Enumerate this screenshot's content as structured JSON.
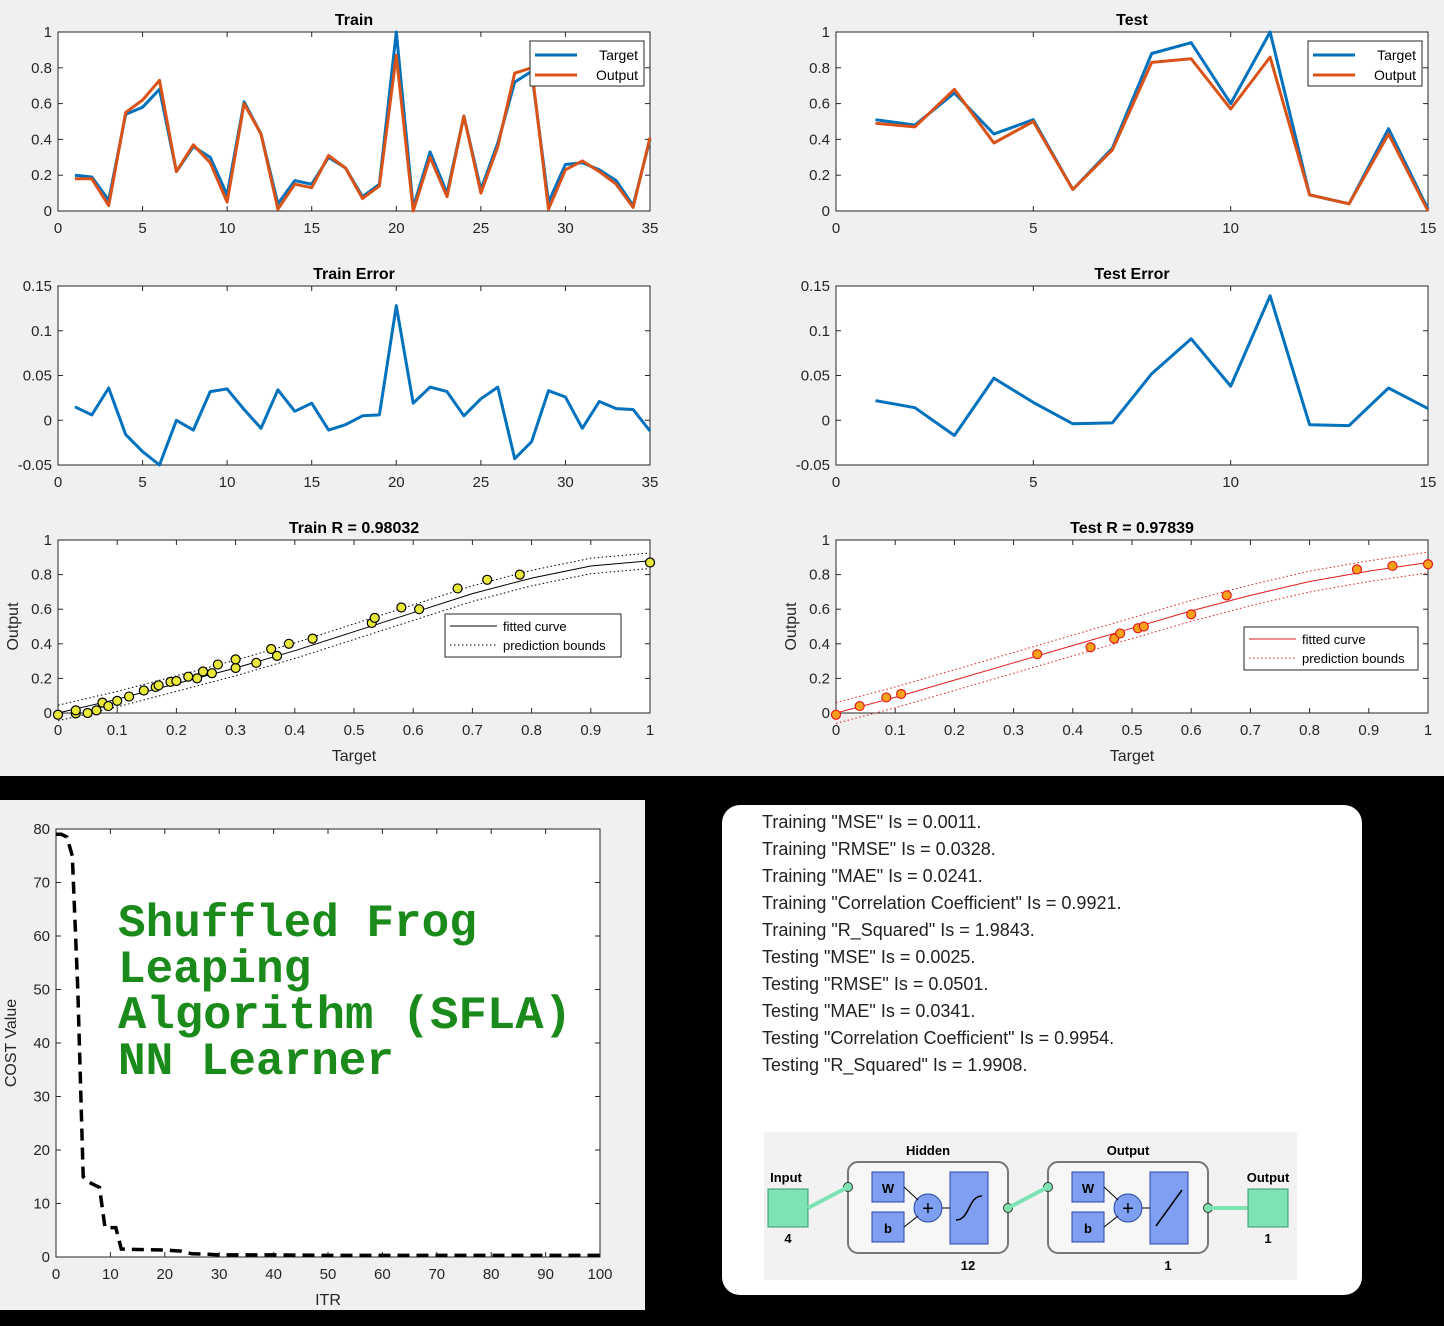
{
  "colors": {
    "target": "#0072BD",
    "output": "#D95319",
    "fit_red": "#e31a1c",
    "marker_yellow": "#e8e83a",
    "marker_orange": "#f6a21a",
    "sfla_green": "#1a8a1a"
  },
  "chart_data": [
    {
      "id": "train",
      "type": "line",
      "title": "Train",
      "xlim": [
        0,
        35
      ],
      "ylim": [
        0,
        1
      ],
      "xticks": [
        "0",
        "5",
        "10",
        "15",
        "20",
        "25",
        "30",
        "35"
      ],
      "yticks": [
        "0",
        "0.2",
        "0.4",
        "0.6",
        "0.8",
        "1"
      ],
      "legend": "top-right",
      "series": [
        {
          "name": "Target",
          "x": [
            1,
            2,
            3,
            4,
            5,
            6,
            7,
            8,
            9,
            10,
            11,
            12,
            13,
            14,
            15,
            16,
            17,
            18,
            19,
            20,
            21,
            22,
            23,
            24,
            25,
            26,
            27,
            28,
            29,
            30,
            31,
            32,
            33,
            34,
            35
          ],
          "values": [
            0.2,
            0.19,
            0.06,
            0.54,
            0.58,
            0.68,
            0.22,
            0.36,
            0.3,
            0.09,
            0.61,
            0.43,
            0.04,
            0.17,
            0.15,
            0.3,
            0.24,
            0.08,
            0.15,
            1.0,
            0.02,
            0.33,
            0.1,
            0.53,
            0.12,
            0.38,
            0.72,
            0.78,
            0.05,
            0.26,
            0.27,
            0.23,
            0.17,
            0.03,
            0.4
          ]
        },
        {
          "name": "Output",
          "x": [
            1,
            2,
            3,
            4,
            5,
            6,
            7,
            8,
            9,
            10,
            11,
            12,
            13,
            14,
            15,
            16,
            17,
            18,
            19,
            20,
            21,
            22,
            23,
            24,
            25,
            26,
            27,
            28,
            29,
            30,
            31,
            32,
            33,
            34,
            35
          ],
          "values": [
            0.18,
            0.18,
            0.03,
            0.55,
            0.62,
            0.73,
            0.22,
            0.37,
            0.27,
            0.05,
            0.6,
            0.43,
            0.01,
            0.15,
            0.13,
            0.31,
            0.24,
            0.07,
            0.14,
            0.87,
            0.0,
            0.3,
            0.08,
            0.53,
            0.1,
            0.36,
            0.77,
            0.8,
            0.01,
            0.23,
            0.28,
            0.22,
            0.15,
            0.02,
            0.41
          ]
        }
      ]
    },
    {
      "id": "test",
      "type": "line",
      "title": "Test",
      "xlim": [
        0,
        15
      ],
      "ylim": [
        0,
        1
      ],
      "xticks": [
        "0",
        "5",
        "10",
        "15"
      ],
      "yticks": [
        "0",
        "0.2",
        "0.4",
        "0.6",
        "0.8",
        "1"
      ],
      "legend": "top-right",
      "series": [
        {
          "name": "Target",
          "x": [
            1,
            2,
            3,
            4,
            5,
            6,
            7,
            8,
            9,
            10,
            11,
            12,
            13,
            14,
            15
          ],
          "values": [
            0.51,
            0.48,
            0.66,
            0.43,
            0.51,
            0.12,
            0.35,
            0.88,
            0.94,
            0.6,
            1.0,
            0.09,
            0.04,
            0.46,
            0.01
          ]
        },
        {
          "name": "Output",
          "x": [
            1,
            2,
            3,
            4,
            5,
            6,
            7,
            8,
            9,
            10,
            11,
            12,
            13,
            14,
            15
          ],
          "values": [
            0.49,
            0.47,
            0.68,
            0.38,
            0.5,
            0.12,
            0.34,
            0.83,
            0.85,
            0.57,
            0.86,
            0.09,
            0.04,
            0.43,
            0.0
          ]
        }
      ]
    },
    {
      "id": "train-error",
      "type": "line",
      "title": "Train Error",
      "xlim": [
        0,
        35
      ],
      "ylim": [
        -0.05,
        0.15
      ],
      "xticks": [
        "0",
        "5",
        "10",
        "15",
        "20",
        "25",
        "30",
        "35"
      ],
      "yticks": [
        "-0.05",
        "0",
        "0.05",
        "0.1",
        "0.15"
      ],
      "series": [
        {
          "x": [
            1,
            2,
            3,
            4,
            5,
            6,
            7,
            8,
            9,
            10,
            11,
            12,
            13,
            14,
            15,
            16,
            17,
            18,
            19,
            20,
            21,
            22,
            23,
            24,
            25,
            26,
            27,
            28,
            29,
            30,
            31,
            32,
            33,
            34,
            35
          ],
          "values": [
            0.015,
            0.006,
            0.036,
            -0.016,
            -0.035,
            -0.05,
            0.0,
            -0.011,
            0.032,
            0.035,
            0.012,
            -0.009,
            0.034,
            0.01,
            0.019,
            -0.011,
            -0.005,
            0.005,
            0.006,
            0.128,
            0.019,
            0.037,
            0.032,
            0.005,
            0.024,
            0.037,
            -0.043,
            -0.024,
            0.033,
            0.026,
            -0.009,
            0.021,
            0.013,
            0.012,
            -0.012
          ]
        }
      ]
    },
    {
      "id": "test-error",
      "type": "line",
      "title": "Test Error",
      "xlim": [
        0,
        15
      ],
      "ylim": [
        -0.05,
        0.15
      ],
      "xticks": [
        "0",
        "5",
        "10",
        "15"
      ],
      "yticks": [
        "-0.05",
        "0",
        "0.05",
        "0.1",
        "0.15"
      ],
      "series": [
        {
          "x": [
            1,
            2,
            3,
            4,
            5,
            6,
            7,
            8,
            9,
            10,
            11,
            12,
            13,
            14,
            15
          ],
          "values": [
            0.022,
            0.014,
            -0.017,
            0.047,
            0.02,
            -0.004,
            -0.003,
            0.052,
            0.091,
            0.038,
            0.139,
            -0.005,
            -0.006,
            0.036,
            0.013
          ]
        }
      ]
    },
    {
      "id": "train-r",
      "type": "scatter",
      "title": "Train  R = 0.98032",
      "xlabel": "Target",
      "ylabel": "Output",
      "xlim": [
        0,
        1
      ],
      "ylim": [
        0,
        1
      ],
      "xticks": [
        "0",
        "0.1",
        "0.2",
        "0.3",
        "0.4",
        "0.5",
        "0.6",
        "0.7",
        "0.8",
        "0.9",
        "1"
      ],
      "yticks": [
        "0",
        "0.2",
        "0.4",
        "0.6",
        "0.8",
        "1"
      ],
      "legend": "center-right",
      "legend_entries": [
        "fitted curve",
        "prediction bounds"
      ],
      "points": {
        "x": [
          0.0,
          0.03,
          0.03,
          0.05,
          0.065,
          0.075,
          0.085,
          0.1,
          0.12,
          0.145,
          0.165,
          0.17,
          0.19,
          0.2,
          0.22,
          0.235,
          0.245,
          0.26,
          0.27,
          0.3,
          0.3,
          0.335,
          0.36,
          0.37,
          0.39,
          0.43,
          0.53,
          0.535,
          0.58,
          0.61,
          0.675,
          0.725,
          0.78,
          1.0
        ],
        "y": [
          -0.01,
          -0.002,
          0.015,
          0.0,
          0.015,
          0.06,
          0.04,
          0.07,
          0.095,
          0.13,
          0.15,
          0.16,
          0.18,
          0.185,
          0.21,
          0.2,
          0.24,
          0.23,
          0.28,
          0.26,
          0.31,
          0.29,
          0.37,
          0.33,
          0.4,
          0.43,
          0.52,
          0.55,
          0.61,
          0.6,
          0.72,
          0.77,
          0.8,
          0.87
        ]
      },
      "fit": {
        "x": [
          0,
          0.1,
          0.2,
          0.3,
          0.4,
          0.5,
          0.6,
          0.7,
          0.8,
          0.9,
          1.0
        ],
        "y": [
          0.0,
          0.08,
          0.17,
          0.26,
          0.36,
          0.47,
          0.58,
          0.69,
          0.78,
          0.85,
          0.88
        ]
      },
      "bounds_offset": 0.045
    },
    {
      "id": "test-r",
      "type": "scatter",
      "title": "Test  R = 0.97839",
      "xlabel": "Target",
      "ylabel": "Output",
      "xlim": [
        0,
        1
      ],
      "ylim": [
        0,
        1
      ],
      "xticks": [
        "0",
        "0.1",
        "0.2",
        "0.3",
        "0.4",
        "0.5",
        "0.6",
        "0.7",
        "0.8",
        "0.9",
        "1"
      ],
      "yticks": [
        "0",
        "0.2",
        "0.4",
        "0.6",
        "0.8",
        "1"
      ],
      "legend": "center-right",
      "legend_entries": [
        "fitted curve",
        "prediction bounds"
      ],
      "points": {
        "x": [
          0.0,
          0.04,
          0.085,
          0.11,
          0.34,
          0.43,
          0.47,
          0.48,
          0.51,
          0.52,
          0.6,
          0.66,
          0.88,
          0.94,
          1.0
        ],
        "y": [
          -0.01,
          0.04,
          0.09,
          0.11,
          0.34,
          0.38,
          0.43,
          0.46,
          0.49,
          0.5,
          0.57,
          0.68,
          0.83,
          0.85,
          0.86
        ]
      },
      "fit": {
        "x": [
          0,
          0.1,
          0.2,
          0.3,
          0.4,
          0.5,
          0.6,
          0.7,
          0.8,
          0.9,
          1.0
        ],
        "y": [
          0.0,
          0.09,
          0.19,
          0.29,
          0.39,
          0.49,
          0.59,
          0.68,
          0.76,
          0.82,
          0.87
        ]
      },
      "bounds_offset": 0.06
    },
    {
      "id": "cost",
      "type": "line",
      "xlabel": "ITR",
      "ylabel": "COST Value",
      "xlim": [
        0,
        100
      ],
      "ylim": [
        0,
        80
      ],
      "xticks": [
        "0",
        "10",
        "20",
        "30",
        "40",
        "50",
        "60",
        "70",
        "80",
        "90",
        "100"
      ],
      "yticks": [
        "0",
        "10",
        "20",
        "30",
        "40",
        "50",
        "60",
        "70",
        "80"
      ],
      "series": [
        {
          "x": [
            0,
            1,
            2,
            3,
            4,
            5,
            6,
            7,
            8,
            9,
            10,
            11,
            12,
            15,
            20,
            23,
            25,
            28,
            30,
            40,
            50,
            60,
            70,
            80,
            90,
            100
          ],
          "values": [
            79,
            79,
            78.5,
            75,
            50,
            15,
            14,
            13.5,
            13,
            5.5,
            5.5,
            5.5,
            1.5,
            1.4,
            1.3,
            1.1,
            0.6,
            0.5,
            0.4,
            0.4,
            0.3,
            0.3,
            0.3,
            0.3,
            0.3,
            0.3
          ]
        }
      ]
    }
  ],
  "sfla_title": [
    "Shuffled Frog",
    "Leaping",
    "Algorithm (SFLA)",
    "NN Learner"
  ],
  "stats_lines": [
    "Training \"MSE\" Is =  0.0011.",
    "Training \"RMSE\" Is =  0.0328.",
    "Training \"MAE\" Is =  0.0241.",
    "Training \"Correlation Coefficient\" Is =  0.9921.",
    "Training \"R_Squared\" Is =  1.9843.",
    "Testing \"MSE\" Is =  0.0025.",
    "Testing \"RMSE\" Is =  0.0501.",
    "Testing \"MAE\" Is =  0.0341.",
    "Testing \"Correlation Coefficient\" Is =  0.9954.",
    "Testing \"R_Squared\" Is =  1.9908."
  ],
  "network": {
    "input_label": "Input",
    "input_size": "4",
    "hidden_label": "Hidden",
    "hidden_size": "12",
    "output_layer_label": "Output",
    "output_layer_size": "1",
    "output_label": "Output",
    "output_size": "1",
    "weight_label": "W",
    "bias_label": "b"
  }
}
